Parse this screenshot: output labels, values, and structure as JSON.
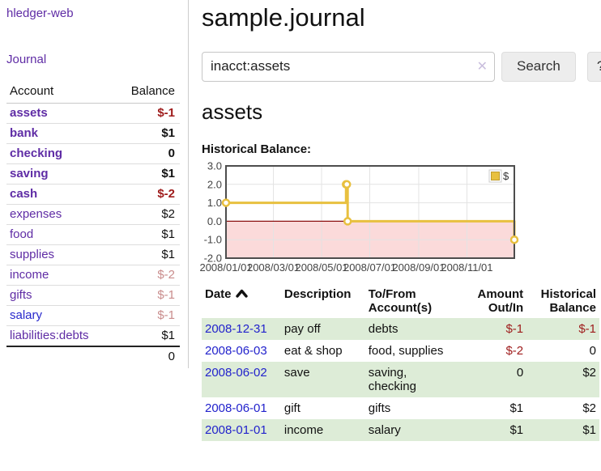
{
  "app": {
    "brand": "hledger-web",
    "nav_journal": "Journal"
  },
  "colors": {
    "link_purple": "#5f2ca5",
    "link_blue": "#2222cc",
    "negative_strong": "#9e1b1b",
    "negative_soft": "#c98c8c",
    "row_stripe_green": "#ddecd7"
  },
  "sidebar": {
    "col_account": "Account",
    "col_balance": "Balance",
    "accounts": [
      {
        "name": "assets",
        "depth": "1",
        "strong": true,
        "balance": "$-1",
        "tone": "neg",
        "variant": "purple"
      },
      {
        "name": "bank",
        "depth": "2",
        "strong": true,
        "balance": "$1",
        "tone": "",
        "variant": "purple"
      },
      {
        "name": "checking",
        "depth": "3",
        "strong": true,
        "balance": "0",
        "tone": "",
        "variant": "purple"
      },
      {
        "name": "saving",
        "depth": "3",
        "strong": true,
        "balance": "$1",
        "tone": "",
        "variant": "purple"
      },
      {
        "name": "cash",
        "depth": "2",
        "strong": true,
        "balance": "$-2",
        "tone": "neg",
        "variant": "purple"
      },
      {
        "name": "expenses",
        "depth": "1",
        "strong": false,
        "balance": "$2",
        "tone": "",
        "variant": "purple"
      },
      {
        "name": "food",
        "depth": "2",
        "strong": false,
        "balance": "$1",
        "tone": "",
        "variant": "purple"
      },
      {
        "name": "supplies",
        "depth": "2",
        "strong": false,
        "balance": "$1",
        "tone": "",
        "variant": "purple"
      },
      {
        "name": "income",
        "depth": "1",
        "strong": false,
        "balance": "$-2",
        "tone": "neg-soft",
        "variant": "purple"
      },
      {
        "name": "gifts",
        "depth": "2",
        "strong": false,
        "balance": "$-1",
        "tone": "neg-soft",
        "variant": "purple"
      },
      {
        "name": "salary",
        "depth": "2",
        "strong": false,
        "balance": "$-1",
        "tone": "neg-soft",
        "variant": "blue"
      },
      {
        "name": "liabilities:debts",
        "depth": "1",
        "strong": false,
        "balance": "$1",
        "tone": "",
        "variant": "purple"
      }
    ],
    "total": "0"
  },
  "header": {
    "title": "sample.journal"
  },
  "search": {
    "value": "inacct:assets",
    "clear_icon": "✕",
    "button": "Search",
    "help": "?"
  },
  "account_page": {
    "heading": "assets",
    "chart_label": "Historical Balance:"
  },
  "chart_data": {
    "type": "line",
    "style": "steps",
    "series": [
      {
        "label": "$",
        "color": "#e8c03f",
        "points": [
          {
            "date": "2008-01-01",
            "value": 1
          },
          {
            "date": "2008-06-01",
            "value": 2
          },
          {
            "date": "2008-06-02",
            "value": 2
          },
          {
            "date": "2008-06-03",
            "value": 0
          },
          {
            "date": "2008-12-31",
            "value": -1
          }
        ]
      }
    ],
    "xrange": [
      "2008-01-01",
      "2008-12-31"
    ],
    "yrange": [
      -2,
      3
    ],
    "yticks": [
      3.0,
      2.0,
      1.0,
      0.0,
      -1.0,
      -2.0
    ],
    "xticks": [
      {
        "date": "2008-01-01",
        "label": "2008/01/01"
      },
      {
        "date": "2008-03-01",
        "label": "2008/03/01"
      },
      {
        "date": "2008-05-01",
        "label": "2008/05/01"
      },
      {
        "date": "2008-07-01",
        "label": "2008/07/01"
      },
      {
        "date": "2008-09-01",
        "label": "2008/09/01"
      },
      {
        "date": "2008-11-01",
        "label": "2008/11/01"
      }
    ],
    "grid": true,
    "legend_position": "top-right",
    "negative_region_fill": "#fbdada",
    "zero_line_color": "#8c1212",
    "border_color": "#4d4d4d",
    "gridline_color": "#e3e3e3"
  },
  "register": {
    "columns": {
      "date": "Date",
      "description": "Description",
      "accounts": "To/From Account(s)",
      "amount": "Amount Out/In",
      "balance": "Historical Balance"
    },
    "sort": "date-ascending",
    "rows": [
      {
        "date": "2008-12-31",
        "description": "pay off",
        "accounts": "debts",
        "amount": "$-1",
        "amount_tone": "neg",
        "balance": "$-1",
        "balance_tone": "neg"
      },
      {
        "date": "2008-06-03",
        "description": "eat & shop",
        "accounts": "food, supplies",
        "amount": "$-2",
        "amount_tone": "neg",
        "balance": "0",
        "balance_tone": ""
      },
      {
        "date": "2008-06-02",
        "description": "save",
        "accounts": "saving, checking",
        "amount": "0",
        "amount_tone": "",
        "balance": "$2",
        "balance_tone": ""
      },
      {
        "date": "2008-06-01",
        "description": "gift",
        "accounts": "gifts",
        "amount": "$1",
        "amount_tone": "",
        "balance": "$2",
        "balance_tone": ""
      },
      {
        "date": "2008-01-01",
        "description": "income",
        "accounts": "salary",
        "amount": "$1",
        "amount_tone": "",
        "balance": "$1",
        "balance_tone": ""
      }
    ]
  }
}
